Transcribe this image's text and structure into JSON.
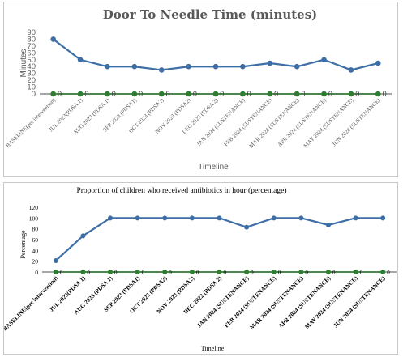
{
  "chart_data": [
    {
      "type": "line",
      "title": "Door To Needle Time (minutes)",
      "xlabel": "Timeline",
      "ylabel": "Minutes",
      "ylim": [
        0,
        90
      ],
      "yticks": [
        "0",
        "10",
        "20",
        "30",
        "40",
        "50",
        "60",
        "70",
        "80",
        "90"
      ],
      "categories": [
        "BASELINE(pre intervention)",
        "JUL 2023(PDSA 1)",
        "AUG 2023 (PDSA 1)",
        "SEP 2023 (PDSA1)",
        "OCT 2023 (PDSA2)",
        "NOV 2023 (PDSA2)",
        "DEC 2023 (PDSA 2)",
        "JAN 2024 (SUSTENANCE)",
        "FEB 2024 (SUSTENANCE)",
        "MAR 2024 (SUSTENANCE)",
        "APR 2024 (SUSTENANCE)",
        "MAY 2024 (SUSTENANCE)",
        "JUN 2024 (SUSTENANCE)"
      ],
      "series": [
        {
          "values": [
            80,
            50,
            40,
            40,
            35,
            40,
            40,
            40,
            45,
            40,
            50,
            35,
            45
          ],
          "color": "#3e6ea6"
        },
        {
          "values": [
            0,
            0,
            0,
            0,
            0,
            0,
            0,
            0,
            0,
            0,
            0,
            0,
            0
          ],
          "color": "#2e7d32",
          "labels": [
            "0",
            "0",
            "0",
            "0",
            "0",
            "0",
            "0",
            "0",
            "0",
            "0",
            "0",
            "0",
            "0"
          ]
        }
      ],
      "grid": false
    },
    {
      "type": "line",
      "title": "Proportion of children who received antibiotics in hour (percentage)",
      "xlabel": "Timeline",
      "ylabel": "Percentage",
      "ylim": [
        0,
        120
      ],
      "yticks": [
        "0",
        "20",
        "40",
        "60",
        "80",
        "100",
        "120"
      ],
      "categories": [
        "BASELINE(pre intervention)",
        "JUL 2023(PDSA 1)",
        "AUG 2023 (PDSA 1)",
        "SEP 2023 (PDSA1)",
        "OCT 2023 (PDSA2)",
        "NOV 2023 (PDSA2)",
        "DEC 2022 (PDSA 2)",
        "JAN 2024 (SUSTENANCE)",
        "FEB 2024 (SUSTENANCE)",
        "MAR 2024 (SUSTENANCE)",
        "APR 2024 (SUSTENANCE)",
        "MAY 2024 (SUSTENANCE)",
        "JUN 2024 (SUSTENANCE)"
      ],
      "series": [
        {
          "values": [
            21,
            67,
            100,
            100,
            100,
            100,
            100,
            83,
            100,
            100,
            87,
            100,
            100
          ],
          "color": "#3e6ea6"
        },
        {
          "values": [
            0,
            0,
            0,
            0,
            0,
            0,
            0,
            0,
            0,
            0,
            0,
            0,
            0
          ],
          "color": "#2e7d32",
          "labels": [
            "0",
            "0",
            "0",
            "0",
            "0",
            "0",
            "0",
            "0",
            "0",
            "0",
            "0",
            "0",
            "0"
          ]
        }
      ],
      "grid": false
    }
  ]
}
